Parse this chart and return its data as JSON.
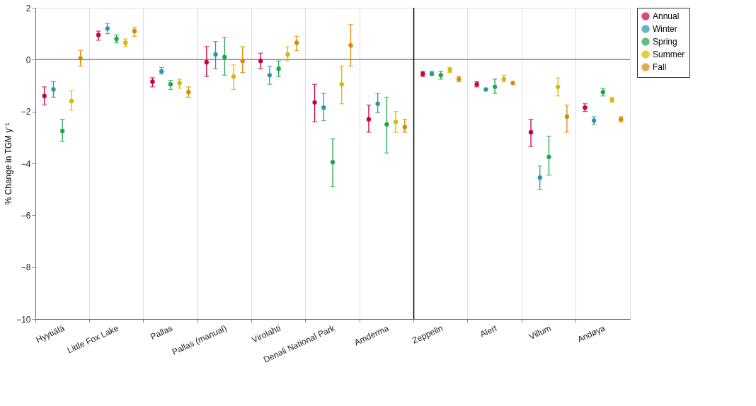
{
  "chart_data": {
    "type": "scatter",
    "ylabel": "% Change in TGM y⁻¹",
    "categories": [
      "Hyytiälä",
      "Little Fox Lake",
      "Pallas",
      "Pallas (manual)",
      "Virolahti",
      "Denali National Park",
      "Amderma",
      "Zeppelin",
      "Alert",
      "Villum",
      "Andøya"
    ],
    "series": [
      {
        "name": "Annual",
        "color": "#c8003c",
        "values": [
          -1.4,
          0.95,
          -0.85,
          -0.1,
          -0.05,
          -1.65,
          -2.3,
          -0.55,
          -0.95,
          -2.8,
          -1.85
        ],
        "errors": [
          [
            -1.75,
            -1.05
          ],
          [
            0.75,
            1.1
          ],
          [
            -1.05,
            -0.7
          ],
          [
            -0.65,
            0.5
          ],
          [
            -0.35,
            0.25
          ],
          [
            -2.4,
            -0.95
          ],
          [
            -2.8,
            -1.75
          ],
          [
            -0.65,
            -0.45
          ],
          [
            -1.05,
            -0.85
          ],
          [
            -3.35,
            -2.3
          ],
          [
            -2.0,
            -1.7
          ]
        ]
      },
      {
        "name": "Winter",
        "color": "#2b95a8",
        "values": [
          -1.15,
          1.2,
          -0.45,
          0.2,
          -0.6,
          -1.85,
          -1.7,
          -0.55,
          -1.15,
          -4.55,
          -2.35
        ],
        "errors": [
          [
            -1.45,
            -0.85
          ],
          [
            1.0,
            1.4
          ],
          [
            -0.55,
            -0.3
          ],
          [
            -0.35,
            0.7
          ],
          [
            -0.95,
            -0.25
          ],
          [
            -2.35,
            -1.3
          ],
          [
            -2.05,
            -1.3
          ],
          [
            -0.6,
            -0.45
          ],
          null,
          [
            -5.0,
            -4.1
          ],
          [
            -2.5,
            -2.2
          ]
        ]
      },
      {
        "name": "Spring",
        "color": "#1fa54a",
        "values": [
          -2.75,
          0.8,
          -0.95,
          0.1,
          -0.35,
          -3.95,
          -2.5,
          -0.6,
          -1.05,
          -3.75,
          -1.25
        ],
        "errors": [
          [
            -3.15,
            -2.3
          ],
          [
            0.65,
            0.95
          ],
          [
            -1.15,
            -0.8
          ],
          [
            -0.6,
            0.85
          ],
          [
            -0.65,
            -0.05
          ],
          [
            -4.9,
            -3.05
          ],
          [
            -3.6,
            -1.45
          ],
          [
            -0.75,
            -0.45
          ],
          [
            -1.3,
            -0.75
          ],
          [
            -4.45,
            -2.95
          ],
          [
            -1.4,
            -1.1
          ]
        ]
      },
      {
        "name": "Summer",
        "color": "#d9b800",
        "values": [
          -1.6,
          0.65,
          -0.9,
          -0.65,
          0.2,
          -0.95,
          -2.4,
          -0.4,
          -0.75,
          -1.05,
          -1.55
        ],
        "errors": [
          [
            -1.95,
            -1.2
          ],
          [
            0.5,
            0.8
          ],
          [
            -1.1,
            -0.75
          ],
          [
            -1.15,
            -0.2
          ],
          [
            -0.05,
            0.5
          ],
          [
            -1.7,
            -0.25
          ],
          [
            -2.8,
            -2.0
          ],
          [
            -0.5,
            -0.3
          ],
          [
            -0.85,
            -0.6
          ],
          [
            -1.4,
            -0.7
          ],
          [
            -1.65,
            -1.45
          ]
        ]
      },
      {
        "name": "Fall",
        "color": "#d98a00",
        "values": [
          0.05,
          1.1,
          -1.25,
          -0.05,
          0.65,
          0.55,
          -2.6,
          -0.75,
          -0.9,
          -2.2,
          -2.3
        ],
        "errors": [
          [
            -0.25,
            0.35
          ],
          [
            0.9,
            1.25
          ],
          [
            -1.45,
            -1.05
          ],
          [
            -0.5,
            0.5
          ],
          [
            0.35,
            0.9
          ],
          [
            -0.25,
            1.35
          ],
          [
            -2.8,
            -2.3
          ],
          [
            -0.85,
            -0.65
          ],
          null,
          [
            -2.8,
            -1.75
          ],
          [
            -2.4,
            -2.2
          ]
        ]
      }
    ],
    "ylim": [
      -10,
      2
    ],
    "yticks": [
      -10,
      -8,
      -6,
      -4,
      -2,
      0,
      2
    ],
    "ref_lines": [
      {
        "axis": "y",
        "value": 0,
        "color": "#888888"
      },
      {
        "axis": "x",
        "value": "Amderma",
        "color": "#000000"
      }
    ],
    "grid": "x",
    "legend": "top right",
    "marker": "circle"
  }
}
